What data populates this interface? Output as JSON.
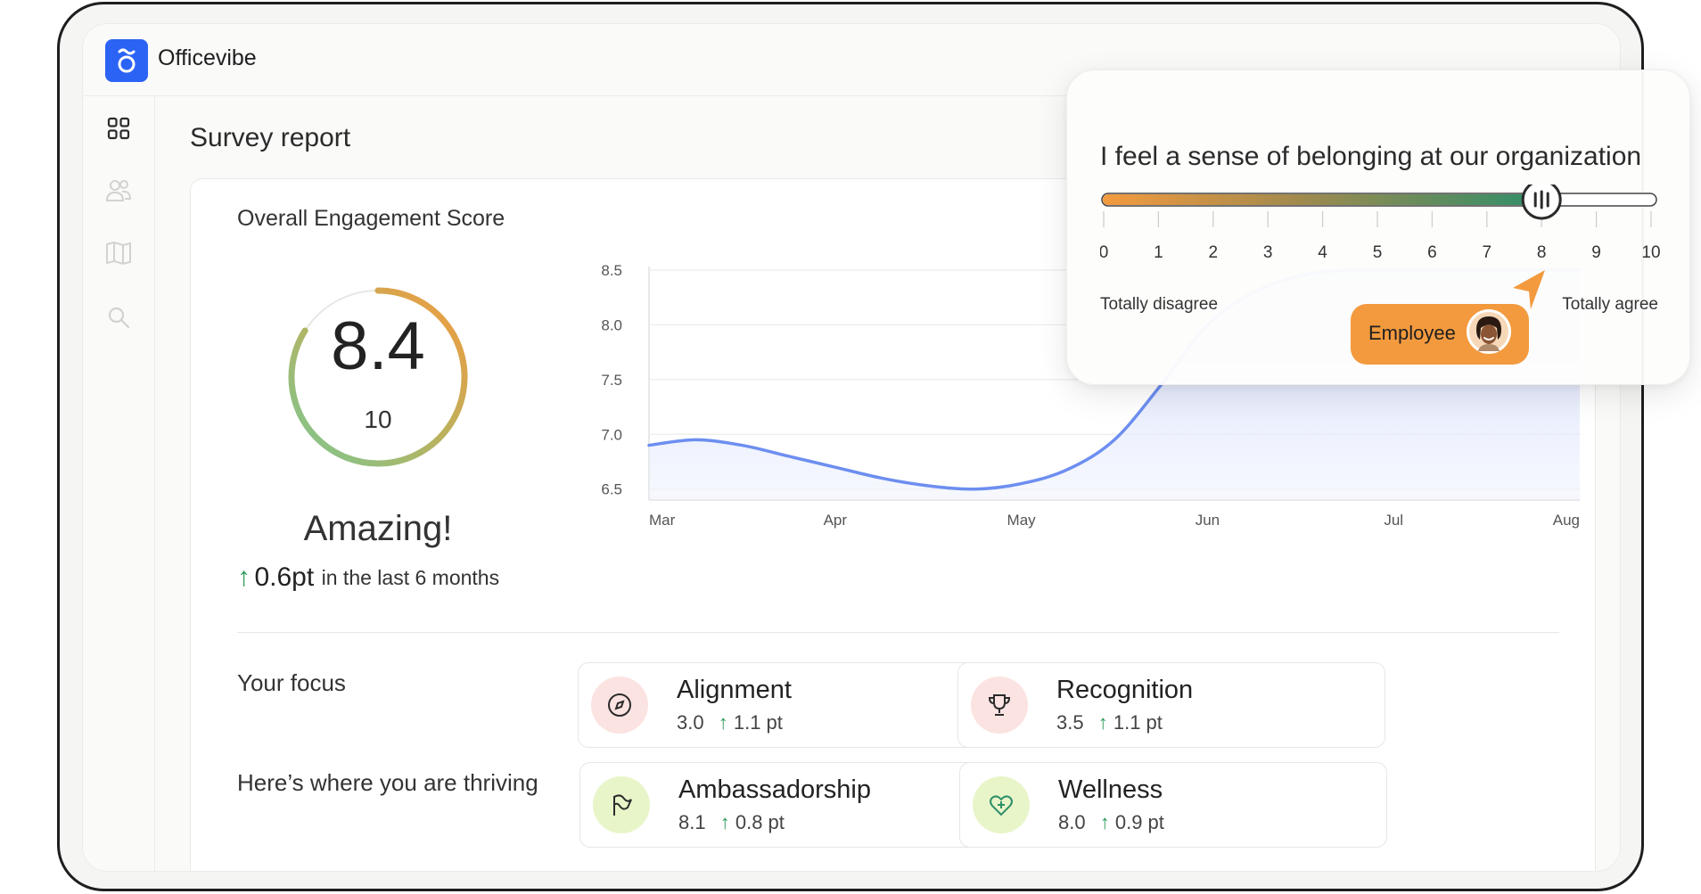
{
  "app": {
    "name": "Officevibe"
  },
  "sidebar": {
    "items": [
      {
        "name": "dashboard",
        "icon": "grid-icon",
        "active": true
      },
      {
        "name": "people",
        "icon": "people-icon",
        "active": false
      },
      {
        "name": "guides",
        "icon": "book-icon",
        "active": false
      },
      {
        "name": "search",
        "icon": "search-icon",
        "active": false
      }
    ]
  },
  "page": {
    "title": "Survey report"
  },
  "engagement": {
    "title": "Overall Engagement Score",
    "score": "8.4",
    "score_value": 8.4,
    "max": "10",
    "verdict": "Amazing!",
    "trend_value": "0.6pt",
    "trend_text": "in the last 6 months",
    "trend_icon": "arrow-up-icon"
  },
  "chart_data": {
    "type": "area",
    "categories": [
      "Mar",
      "Apr",
      "May",
      "Jun",
      "Jul",
      "Aug"
    ],
    "x": [
      0,
      0.25,
      0.5,
      0.75,
      1.0,
      1.25,
      1.5,
      1.75,
      2.0,
      2.25,
      2.5,
      2.75,
      3.0,
      3.25,
      3.5,
      3.75,
      4.0,
      4.25,
      4.5,
      4.75,
      5.0
    ],
    "series": [
      {
        "values": [
          6.9,
          6.95,
          6.9,
          6.8,
          6.7,
          6.6,
          6.53,
          6.5,
          6.55,
          6.68,
          6.95,
          7.45,
          8.0,
          8.3,
          8.45,
          8.5,
          8.5,
          8.5,
          8.5,
          8.5,
          8.5
        ]
      }
    ],
    "yticks": [
      "8.5",
      "8.0",
      "7.5",
      "7.0",
      "6.5"
    ],
    "ylim": [
      6.4,
      8.5
    ],
    "grid": true,
    "line_color": "#6d8ef0",
    "fill_color": "#dbe3fd"
  },
  "focus": {
    "label": "Your focus",
    "items": [
      {
        "name": "Alignment",
        "score": "3.0",
        "delta": "1.1 pt",
        "icon": "compass-icon",
        "icon_bg": "#fbe3e1"
      },
      {
        "name": "Recognition",
        "score": "3.5",
        "delta": "1.1 pt",
        "icon": "trophy-icon",
        "icon_bg": "#fbe3e1"
      }
    ]
  },
  "thriving": {
    "label": "Here’s where you are thriving",
    "items": [
      {
        "name": "Ambassadorship",
        "score": "8.1",
        "delta": "0.8 pt",
        "icon": "flag-icon",
        "icon_bg": "#e8f5c9"
      },
      {
        "name": "Wellness",
        "score": "8.0",
        "delta": "0.9 pt",
        "icon": "heart-plus-icon",
        "icon_bg": "#e8f5c9"
      }
    ]
  },
  "question_card": {
    "question": "I feel a sense of belonging at our organization",
    "scale": [
      "0",
      "1",
      "2",
      "3",
      "4",
      "5",
      "6",
      "7",
      "8",
      "9",
      "10"
    ],
    "value": 8,
    "min_label": "Totally disagree",
    "max_label": "Totally agree",
    "respondent_label": "Employee",
    "colors": {
      "low": "#f39a3e",
      "high": "#2f8f6a",
      "tag": "#f39a3e"
    }
  }
}
